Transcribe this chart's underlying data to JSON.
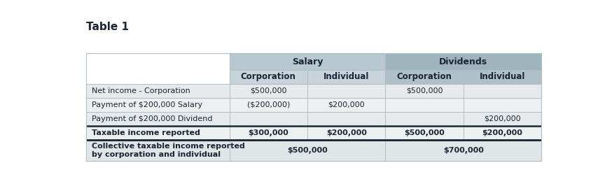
{
  "title": "Table 1",
  "col_headers": [
    "Corporation",
    "Individual",
    "Corporation",
    "Individual"
  ],
  "row_labels": [
    "Net income - Corporation",
    "Payment of $200,000 Salary",
    "Payment of $200,000 Dividend",
    "Taxable income reported",
    "Collective taxable income reported\nby corporation and individual"
  ],
  "row_bold": [
    false,
    false,
    false,
    true,
    true
  ],
  "cells": [
    [
      "$500,000",
      "",
      "$500,000",
      ""
    ],
    [
      "($200,000)",
      "$200,000",
      "",
      ""
    ],
    [
      "",
      "",
      "",
      "$200,000"
    ],
    [
      "$300,000",
      "$200,000",
      "$500,000",
      "$200,000"
    ],
    [
      "$500,000",
      "",
      "$700,000",
      ""
    ]
  ],
  "cell_bold": [
    [
      false,
      false,
      false,
      false
    ],
    [
      false,
      false,
      false,
      false
    ],
    [
      false,
      false,
      false,
      false
    ],
    [
      true,
      true,
      true,
      true
    ],
    [
      true,
      false,
      true,
      false
    ]
  ],
  "salary_bg": "#b8c8d0",
  "dividends_bg": "#a0b4be",
  "subheader_salary_bg": "#c8d4da",
  "subheader_div_bg": "#b0c0c8",
  "row_bg_odd": "#e6eaec",
  "row_bg_even": "#edf0f1",
  "last_row_bg": "#e0e6e8",
  "figure_bg": "#ffffff",
  "border_light": "#b0bec5",
  "border_dark": "#1a2a35",
  "text_color": "#1a2535",
  "title_fontsize": 11,
  "header_fontsize": 8.5,
  "cell_fontsize": 8.0,
  "fig_width": 8.74,
  "fig_height": 2.63,
  "dpi": 100
}
